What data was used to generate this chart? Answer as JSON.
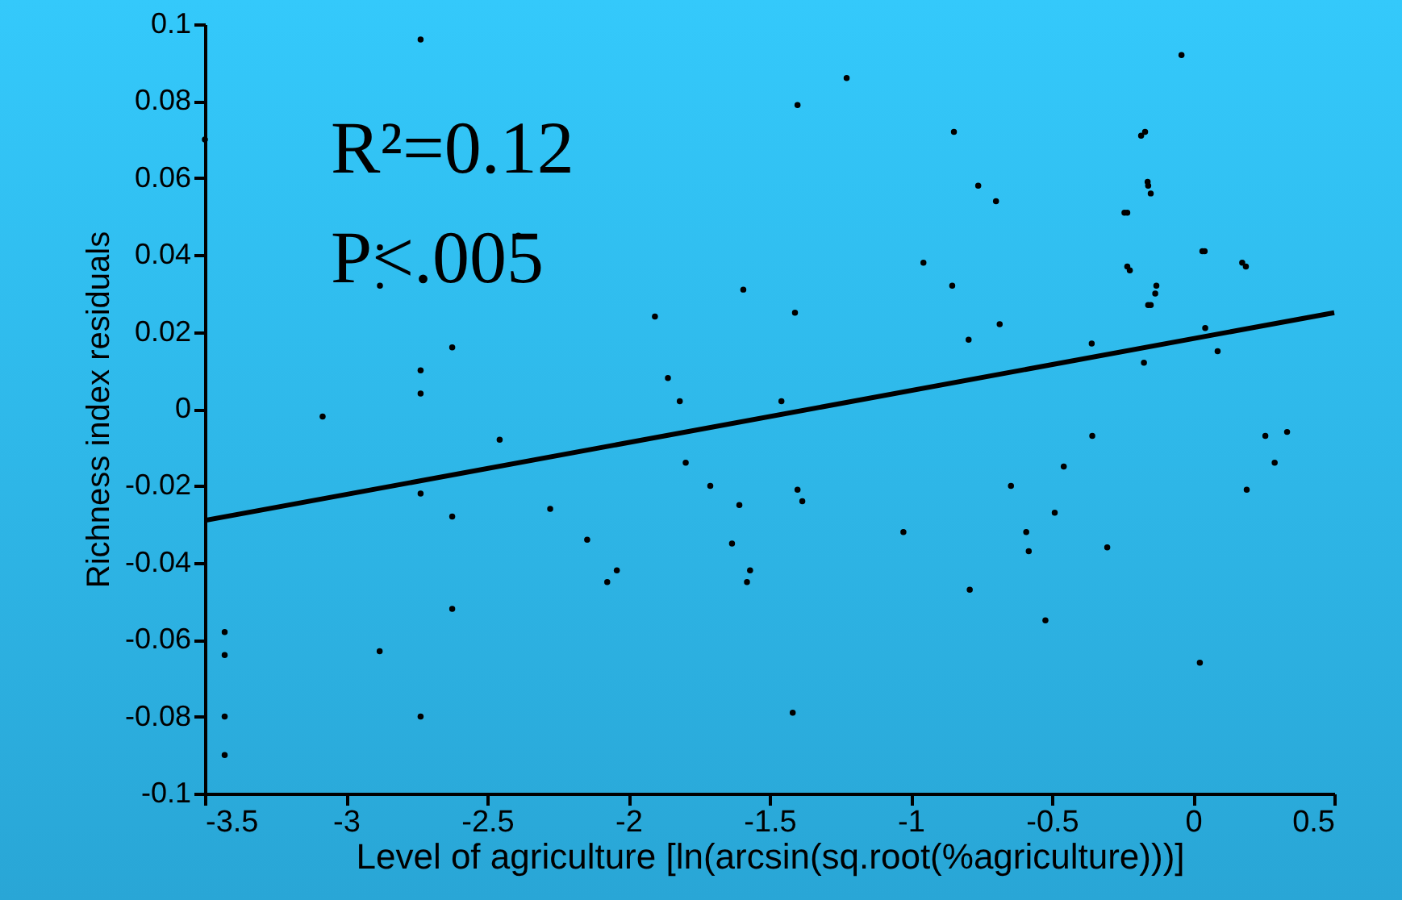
{
  "chart_data": {
    "type": "scatter",
    "xlabel": "Level of agriculture [ln(arcsin(sq.root(%agriculture)))]",
    "ylabel": "Richness index residuals",
    "annotations": [
      "R²=0.12",
      "P<.005"
    ],
    "xlim": [
      -3.5,
      0.5
    ],
    "xticks": [
      -3.5,
      -3,
      -2.5,
      -2,
      -1.5,
      -1,
      -0.5,
      0,
      0.5
    ],
    "ylim": [
      -0.1,
      0.1
    ],
    "yticks": [
      -0.1,
      -0.08,
      -0.06,
      -0.04,
      -0.02,
      0,
      0.02,
      0.04,
      0.06,
      0.08,
      0.1
    ],
    "grid": false,
    "marker": "circle",
    "series": [
      {
        "color": "#000000",
        "x": [
          -3.5,
          -2.736,
          -2.39,
          -2.88,
          -2.88,
          -1.593,
          -1.906,
          -2.624,
          -2.736,
          -2.736,
          -1.86,
          -1.818,
          -3.083,
          -0.041,
          -1.227,
          -1.401,
          -0.847,
          -0.184,
          -0.17,
          -0.761,
          -0.698,
          -0.161,
          -0.159,
          -0.15,
          -0.243,
          -0.233,
          -0.955,
          -0.853,
          0.033,
          0.041,
          0.174,
          0.187,
          -0.233,
          -0.224,
          -0.13,
          -0.134,
          -0.159,
          -0.15,
          -1.41,
          -0.685,
          -0.795,
          0.043,
          0.087,
          -0.359,
          -0.174,
          -1.458,
          -2.456,
          -2.736,
          -2.624,
          -2.277,
          -2.146,
          -2.041,
          -2.075,
          -1.797,
          -1.71,
          -1.607,
          -1.633,
          -1.569,
          -1.58,
          -2.624,
          -3.43,
          -3.43,
          -2.881,
          -3.43,
          -2.736,
          -3.43,
          -1.401,
          -1.384,
          -1.026,
          -0.791,
          -1.418,
          -0.357,
          -0.458,
          -0.645,
          -0.49,
          -0.591,
          -0.582,
          -0.304,
          -0.523,
          0.024,
          0.256,
          0.333,
          0.289,
          0.19
        ],
        "values": [
          0.07,
          0.096,
          0.045,
          0.042,
          0.032,
          0.031,
          0.024,
          0.016,
          0.01,
          0.004,
          0.008,
          0.002,
          -0.002,
          0.092,
          0.086,
          0.079,
          0.072,
          0.071,
          0.072,
          0.058,
          0.054,
          0.059,
          0.058,
          0.056,
          0.051,
          0.051,
          0.038,
          0.032,
          0.041,
          0.041,
          0.038,
          0.037,
          0.037,
          0.036,
          0.032,
          0.03,
          0.027,
          0.027,
          0.025,
          0.022,
          0.018,
          0.021,
          0.015,
          0.017,
          0.012,
          0.002,
          -0.008,
          -0.022,
          -0.028,
          -0.026,
          -0.034,
          -0.042,
          -0.045,
          -0.014,
          -0.02,
          -0.025,
          -0.035,
          -0.042,
          -0.045,
          -0.052,
          -0.058,
          -0.064,
          -0.063,
          -0.08,
          -0.08,
          -0.09,
          -0.021,
          -0.024,
          -0.032,
          -0.047,
          -0.079,
          -0.007,
          -0.015,
          -0.02,
          -0.027,
          -0.032,
          -0.037,
          -0.036,
          -0.055,
          -0.066,
          -0.007,
          -0.006,
          -0.014,
          -0.021
        ]
      },
      {
        "type": "line",
        "color": "#000000",
        "line_style": "solid",
        "marker": "none",
        "x": [
          -3.5,
          0.5
        ],
        "values": [
          -0.029,
          0.025
        ]
      }
    ]
  }
}
